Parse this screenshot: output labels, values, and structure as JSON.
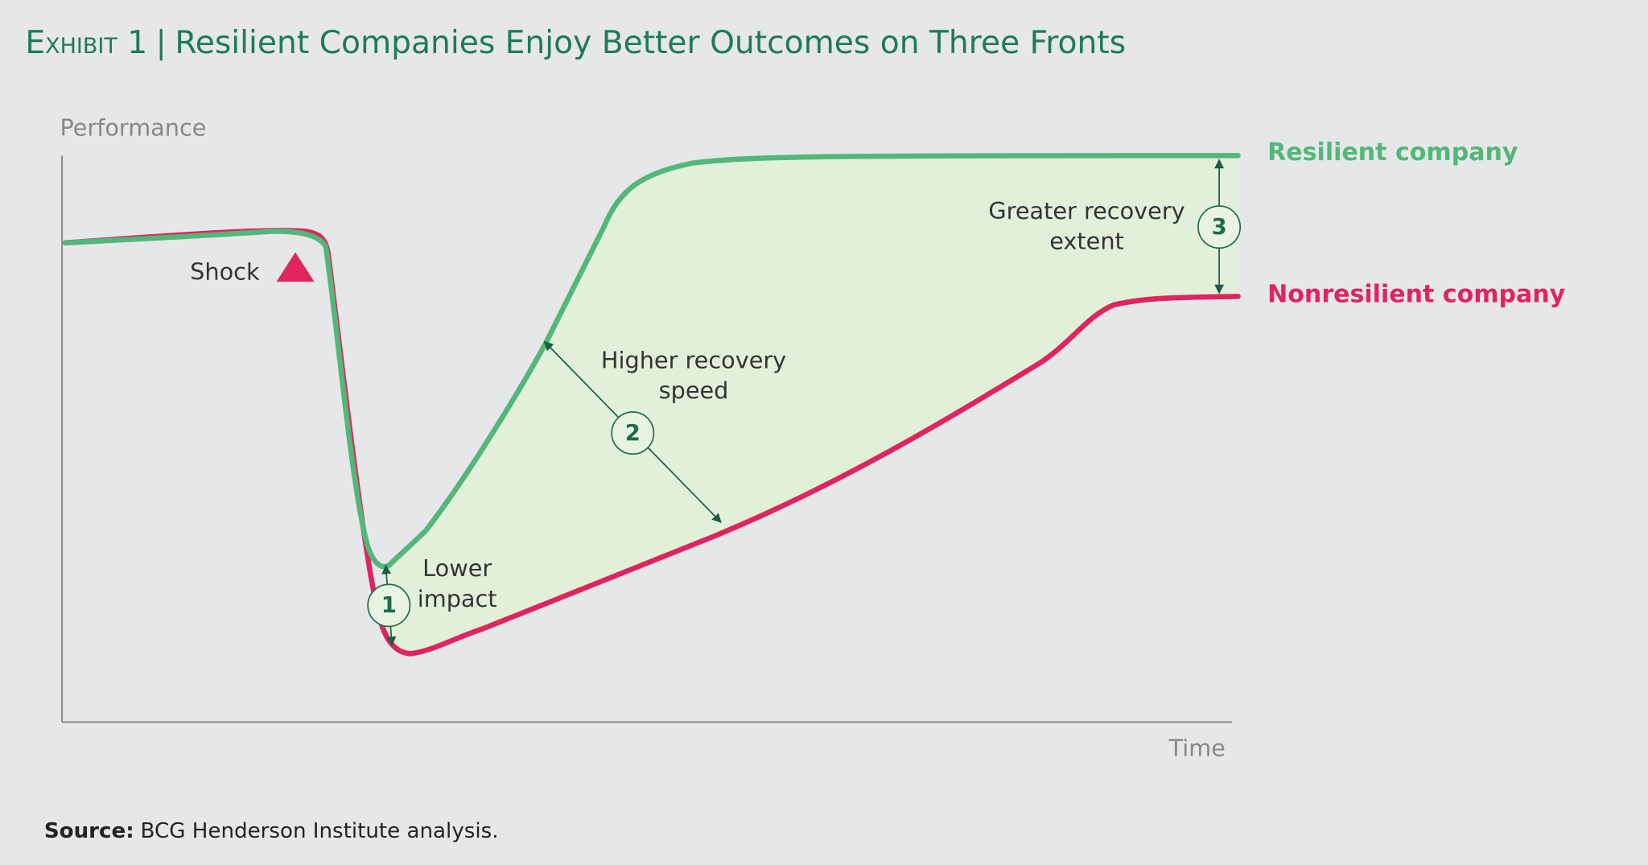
{
  "header": {
    "exhibit": "Exhibit 1",
    "separator": "|",
    "title": "Resilient Companies Enjoy Better Outcomes on Three Fronts"
  },
  "axes": {
    "y_label": "Performance",
    "x_label": "Time"
  },
  "annotations": {
    "shock": "Shock",
    "markers": [
      {
        "number": "1",
        "lines": [
          "Lower",
          "impact"
        ]
      },
      {
        "number": "2",
        "lines": [
          "Higher recovery",
          "speed"
        ]
      },
      {
        "number": "3",
        "lines": [
          "Greater recovery",
          "extent"
        ]
      }
    ]
  },
  "legend": {
    "resilient": "Resilient company",
    "nonresilient": "Nonresilient company"
  },
  "source": {
    "label": "Source:",
    "text": "BCG Henderson Institute analysis."
  }
}
